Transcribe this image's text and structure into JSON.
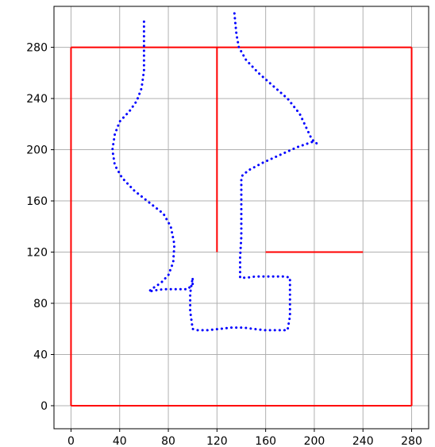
{
  "chart_data": {
    "type": "line",
    "title": "",
    "xlabel": "",
    "ylabel": "",
    "xlim": [
      -14,
      294
    ],
    "ylim": [
      -18,
      312
    ],
    "xticks": [
      0,
      40,
      80,
      120,
      160,
      200,
      240,
      280
    ],
    "yticks": [
      0,
      40,
      80,
      120,
      160,
      200,
      240,
      280
    ],
    "xtick_labels": [
      "0",
      "40",
      "80",
      "120",
      "160",
      "200",
      "240",
      "280"
    ],
    "ytick_labels": [
      "0",
      "40",
      "80",
      "120",
      "160",
      "200",
      "240",
      "280"
    ],
    "grid": true,
    "colors": {
      "walls": "#ff0000",
      "path": "#0000ff",
      "grid": "#b0b0b0"
    },
    "series": [
      {
        "style": "solid",
        "color": "#ff0000",
        "segments": [
          [
            [
              0,
              0
            ],
            [
              280,
              0
            ]
          ],
          [
            [
              280,
              0
            ],
            [
              280,
              280
            ]
          ],
          [
            [
              280,
              280
            ],
            [
              0,
              280
            ]
          ],
          [
            [
              0,
              280
            ],
            [
              0,
              0
            ]
          ],
          [
            [
              120,
              280
            ],
            [
              120,
              120
            ]
          ],
          [
            [
              160,
              120
            ],
            [
              240,
              120
            ]
          ]
        ]
      },
      {
        "style": "dotted",
        "color": "#0000ff",
        "x": [
          60,
          60,
          60,
          58,
          54,
          48,
          40,
          36,
          34,
          36,
          42,
          52,
          64,
          76,
          82,
          85,
          84,
          80,
          74,
          66,
          64,
          68,
          76,
          86,
          96,
          100,
          100,
          98,
          98,
          100,
          104,
          112,
          122,
          132,
          142,
          150,
          160,
          170,
          178,
          180,
          180,
          180,
          180,
          176,
          168,
          160,
          152,
          144,
          139,
          139,
          140,
          140,
          140,
          140,
          140,
          140,
          141,
          146,
          158,
          172,
          186,
          198,
          202,
          198,
          194,
          188,
          178,
          166,
          154,
          144,
          138,
          136,
          135,
          134
        ],
        "y": [
          300,
          280,
          262,
          248,
          238,
          230,
          222,
          212,
          200,
          188,
          178,
          168,
          159,
          150,
          140,
          126,
          112,
          102,
          96,
          91,
          89,
          90,
          91,
          91,
          91,
          95,
          100,
          88,
          74,
          60,
          59,
          59,
          60,
          61,
          61,
          60,
          59,
          59,
          59,
          70,
          82,
          92,
          100,
          101,
          101,
          101,
          101,
          100,
          100,
          116,
          132,
          148,
          164,
          172,
          176,
          178,
          180,
          184,
          190,
          196,
          202,
          206,
          205,
          208,
          216,
          228,
          240,
          250,
          260,
          270,
          280,
          290,
          300,
          310
        ]
      }
    ]
  }
}
